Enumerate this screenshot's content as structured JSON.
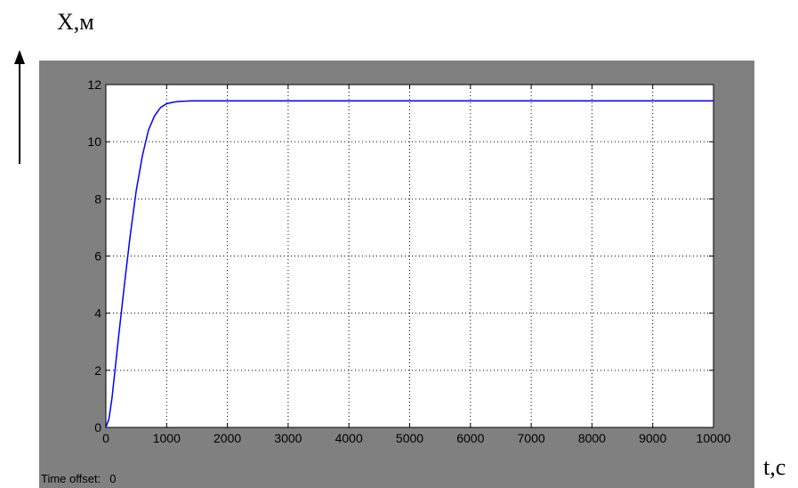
{
  "figure": {
    "y_axis_label": "X,м",
    "x_axis_label": "t,c",
    "time_offset_label": "Time offset:",
    "time_offset_value": "0"
  },
  "colors": {
    "scope_background": "#808080",
    "plot_background": "#ffffff",
    "series_line": "#0000ff",
    "grid": "#000000"
  },
  "chart_data": {
    "type": "line",
    "title": "",
    "xlabel": "t,c",
    "ylabel": "X,м",
    "xlim": [
      0,
      10000
    ],
    "ylim": [
      0,
      12
    ],
    "grid": true,
    "x_ticks": [
      0,
      1000,
      2000,
      3000,
      4000,
      5000,
      6000,
      7000,
      8000,
      9000,
      10000
    ],
    "y_ticks": [
      0,
      2,
      4,
      6,
      8,
      10,
      12
    ],
    "series": [
      {
        "x": [
          0,
          50,
          100,
          200,
          300,
          400,
          500,
          600,
          700,
          800,
          900,
          1000,
          1100,
          1200,
          1300,
          1400,
          1500,
          2000,
          3000,
          4000,
          5000,
          6000,
          7000,
          8000,
          9000,
          10000
        ],
        "y": [
          0,
          0.3,
          1.0,
          3.0,
          4.9,
          6.7,
          8.3,
          9.5,
          10.4,
          10.9,
          11.2,
          11.33,
          11.38,
          11.41,
          11.42,
          11.43,
          11.43,
          11.43,
          11.43,
          11.43,
          11.43,
          11.43,
          11.43,
          11.43,
          11.43,
          11.43
        ]
      }
    ]
  }
}
